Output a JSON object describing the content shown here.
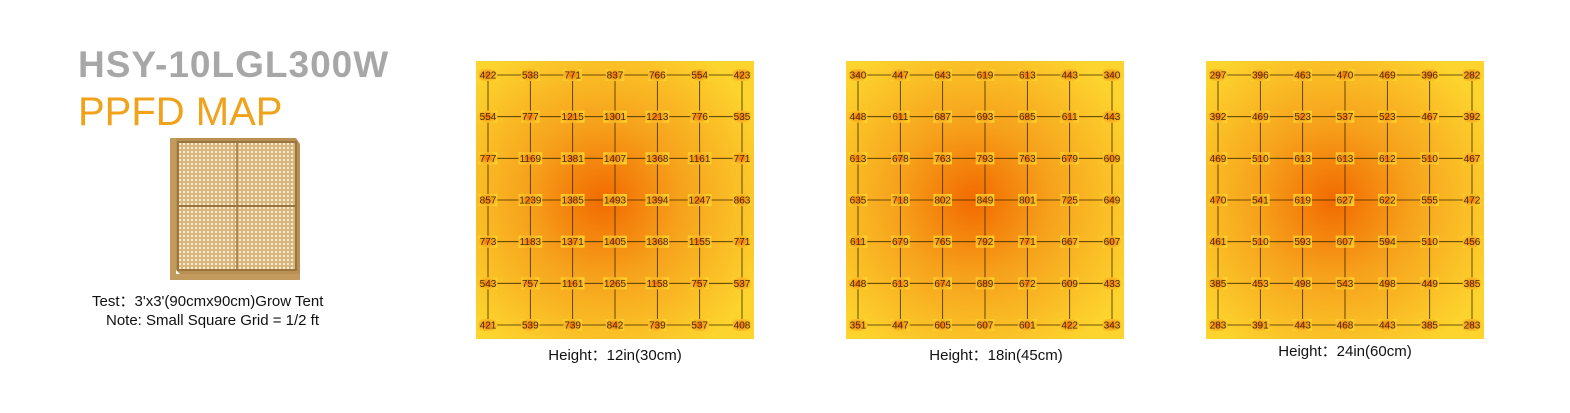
{
  "header": {
    "model": "HSY-10LGL300W",
    "subtitle": "PPFD MAP"
  },
  "test_info": {
    "test": "Test：3'x3'(90cmx90cm)Grow Tent",
    "note": "Note: Small Square Grid = 1/2 ft"
  },
  "colors": {
    "heat_center": "#f26a00",
    "heat_mid": "#f6a21c",
    "heat_edge": "#fdd32d",
    "number_color": "#4a2a00",
    "line_color": "#3d2a00",
    "subtitle_color": "#f0a21b",
    "model_color": "#a7a7a7"
  },
  "chart_data": [
    {
      "type": "heatmap",
      "label": "Height：12in(30cm)",
      "values": [
        [
          422,
          538,
          771,
          837,
          766,
          554,
          423
        ],
        [
          554,
          777,
          1215,
          1301,
          1213,
          776,
          535
        ],
        [
          777,
          1169,
          1381,
          1407,
          1368,
          1161,
          771
        ],
        [
          857,
          1239,
          1385,
          1493,
          1394,
          1247,
          863
        ],
        [
          773,
          1183,
          1371,
          1405,
          1368,
          1155,
          771
        ],
        [
          543,
          757,
          1161,
          1265,
          1158,
          757,
          537
        ],
        [
          421,
          539,
          739,
          842,
          739,
          537,
          408
        ]
      ]
    },
    {
      "type": "heatmap",
      "label": "Height：18in(45cm)",
      "values": [
        [
          340,
          447,
          643,
          619,
          613,
          443,
          340
        ],
        [
          448,
          611,
          687,
          693,
          685,
          611,
          443
        ],
        [
          613,
          678,
          763,
          793,
          763,
          679,
          609
        ],
        [
          635,
          718,
          802,
          849,
          801,
          725,
          649
        ],
        [
          611,
          679,
          765,
          792,
          771,
          667,
          607
        ],
        [
          448,
          613,
          674,
          689,
          672,
          609,
          433
        ],
        [
          351,
          447,
          605,
          607,
          601,
          422,
          343
        ]
      ]
    },
    {
      "type": "heatmap",
      "label": "Height：24in(60cm)",
      "values": [
        [
          297,
          396,
          463,
          470,
          469,
          396,
          282
        ],
        [
          392,
          469,
          523,
          537,
          523,
          467,
          392
        ],
        [
          469,
          510,
          613,
          613,
          612,
          510,
          467
        ],
        [
          470,
          541,
          619,
          627,
          622,
          555,
          472
        ],
        [
          461,
          510,
          593,
          607,
          594,
          510,
          456
        ],
        [
          385,
          453,
          498,
          543,
          498,
          449,
          385
        ],
        [
          283,
          391,
          443,
          468,
          443,
          385,
          283
        ]
      ]
    }
  ]
}
